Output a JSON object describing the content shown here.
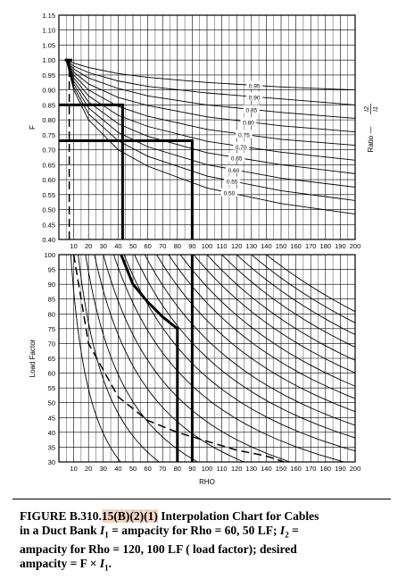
{
  "chart_data": [
    {
      "type": "line",
      "panel": "top",
      "ylabel": "F",
      "right_label_prefix": "Ratio —",
      "right_label_num": "I2",
      "right_label_den": "I1",
      "xlim": [
        0,
        200
      ],
      "ylim": [
        0.4,
        1.15
      ],
      "x_ticks": [
        10,
        20,
        30,
        40,
        50,
        60,
        70,
        80,
        90,
        100,
        110,
        120,
        130,
        140,
        150,
        160,
        170,
        180,
        190,
        200
      ],
      "y_ticks": [
        "0.40",
        "0.45",
        "0.50",
        "0.55",
        "0.60",
        "0.65",
        "0.70",
        "0.75",
        "0.80",
        "0.85",
        "0.90",
        "0.95",
        "1.00",
        "1.05",
        "1.10",
        "1.15"
      ],
      "series": [
        {
          "name": "0.95",
          "label_x": 132,
          "points": [
            [
              5,
              1.0
            ],
            [
              10,
              0.99
            ],
            [
              20,
              0.975
            ],
            [
              40,
              0.955
            ],
            [
              60,
              0.942
            ],
            [
              100,
              0.925
            ],
            [
              150,
              0.91
            ],
            [
              200,
              0.9
            ]
          ]
        },
        {
          "name": "0.90",
          "label_x": 132,
          "points": [
            [
              5,
              1.0
            ],
            [
              10,
              0.98
            ],
            [
              20,
              0.958
            ],
            [
              40,
              0.93
            ],
            [
              60,
              0.912
            ],
            [
              100,
              0.89
            ],
            [
              150,
              0.87
            ],
            [
              200,
              0.85
            ]
          ]
        },
        {
          "name": "0.85",
          "label_x": 130,
          "points": [
            [
              5,
              1.0
            ],
            [
              10,
              0.97
            ],
            [
              20,
              0.94
            ],
            [
              40,
              0.905
            ],
            [
              60,
              0.88
            ],
            [
              100,
              0.85
            ],
            [
              150,
              0.825
            ],
            [
              200,
              0.805
            ]
          ]
        },
        {
          "name": "0.80",
          "label_x": 128,
          "points": [
            [
              5,
              1.0
            ],
            [
              10,
              0.96
            ],
            [
              20,
              0.92
            ],
            [
              40,
              0.875
            ],
            [
              60,
              0.848
            ],
            [
              100,
              0.81
            ],
            [
              150,
              0.78
            ],
            [
              200,
              0.76
            ]
          ]
        },
        {
          "name": "0.75",
          "label_x": 125,
          "points": [
            [
              5,
              1.0
            ],
            [
              10,
              0.95
            ],
            [
              20,
              0.9
            ],
            [
              40,
              0.845
            ],
            [
              60,
              0.812
            ],
            [
              100,
              0.768
            ],
            [
              150,
              0.735
            ],
            [
              200,
              0.715
            ]
          ]
        },
        {
          "name": "0.70",
          "label_x": 123,
          "points": [
            [
              5,
              1.0
            ],
            [
              10,
              0.94
            ],
            [
              20,
              0.88
            ],
            [
              40,
              0.815
            ],
            [
              60,
              0.778
            ],
            [
              100,
              0.728
            ],
            [
              150,
              0.692
            ],
            [
              200,
              0.665
            ]
          ]
        },
        {
          "name": "0.65",
          "label_x": 120,
          "points": [
            [
              5,
              1.0
            ],
            [
              10,
              0.93
            ],
            [
              20,
              0.86
            ],
            [
              40,
              0.787
            ],
            [
              60,
              0.745
            ],
            [
              100,
              0.69
            ],
            [
              150,
              0.65
            ],
            [
              200,
              0.62
            ]
          ]
        },
        {
          "name": "0.60",
          "label_x": 118,
          "points": [
            [
              5,
              1.0
            ],
            [
              10,
              0.92
            ],
            [
              20,
              0.84
            ],
            [
              40,
              0.758
            ],
            [
              60,
              0.71
            ],
            [
              100,
              0.65
            ],
            [
              150,
              0.605
            ],
            [
              200,
              0.575
            ]
          ]
        },
        {
          "name": "0.55",
          "label_x": 117,
          "points": [
            [
              5,
              1.0
            ],
            [
              10,
              0.91
            ],
            [
              20,
              0.82
            ],
            [
              40,
              0.73
            ],
            [
              60,
              0.678
            ],
            [
              100,
              0.612
            ],
            [
              150,
              0.563
            ],
            [
              200,
              0.53
            ]
          ]
        },
        {
          "name": "0.50",
          "label_x": 115,
          "points": [
            [
              5,
              1.0
            ],
            [
              10,
              0.9
            ],
            [
              20,
              0.8
            ],
            [
              40,
              0.7
            ],
            [
              60,
              0.645
            ],
            [
              100,
              0.572
            ],
            [
              150,
              0.52
            ],
            [
              200,
              0.485
            ]
          ]
        }
      ],
      "guides": [
        {
          "points": [
            [
              7,
              0.4
            ],
            [
              7,
              1.0
            ]
          ],
          "style": "dashed"
        },
        {
          "points": [
            [
              4,
              1.0
            ],
            [
              9,
              1.0
            ]
          ],
          "style": "heavy"
        },
        {
          "points": [
            [
              0,
              0.85
            ],
            [
              43,
              0.85
            ],
            [
              43,
              0.4
            ]
          ],
          "style": "heavy"
        },
        {
          "points": [
            [
              0,
              0.73
            ],
            [
              90,
              0.73
            ],
            [
              90,
              0.4
            ]
          ],
          "style": "heavy"
        }
      ]
    },
    {
      "type": "line",
      "panel": "bottom",
      "xlabel": "RHO",
      "ylabel": "Load Factor",
      "xlim": [
        0,
        200
      ],
      "ylim": [
        30,
        100
      ],
      "x_ticks": [
        10,
        20,
        30,
        40,
        50,
        60,
        70,
        80,
        90,
        100,
        110,
        120,
        130,
        140,
        150,
        160,
        170,
        180,
        190,
        200
      ],
      "y_ticks": [
        "30",
        "35",
        "40",
        "45",
        "50",
        "55",
        "60",
        "65",
        "70",
        "75",
        "80",
        "85",
        "90",
        "95",
        "100"
      ],
      "family_k": [
        8,
        13,
        18,
        24,
        30,
        37,
        44,
        51,
        58,
        66,
        74,
        82,
        91,
        100,
        110,
        120,
        130,
        140
      ],
      "series": [
        {
          "name": "dashed",
          "style": "dashed",
          "points": [
            [
              10,
              100
            ],
            [
              20,
              70
            ],
            [
              40,
              52
            ],
            [
              60,
              44
            ],
            [
              80,
              40
            ],
            [
              100,
              37
            ],
            [
              120,
              34
            ],
            [
              140,
              32
            ],
            [
              152,
              30
            ]
          ]
        },
        {
          "name": "heavy",
          "style": "heavy",
          "points": [
            [
              42,
              100
            ],
            [
              50,
              90
            ],
            [
              60,
              84
            ],
            [
              70,
              79
            ],
            [
              80,
              75
            ],
            [
              80,
              30
            ]
          ]
        },
        {
          "name": "vertical-90",
          "style": "heavy",
          "points": [
            [
              90,
              100
            ],
            [
              90,
              30
            ]
          ]
        }
      ]
    }
  ],
  "caption": {
    "prefix": "FIGURE B.310.",
    "highlight": "15(B)(2)(1)",
    "line1_rest": "  Interpolation Chart for Cables",
    "line2": "in a Duct Bank I1 = ampacity for Rho = 60, 50 LF; I2 =",
    "line3": "ampacity for Rho = 120, 100 LF ( load factor); desired",
    "line4": "ampacity = F × I1."
  }
}
